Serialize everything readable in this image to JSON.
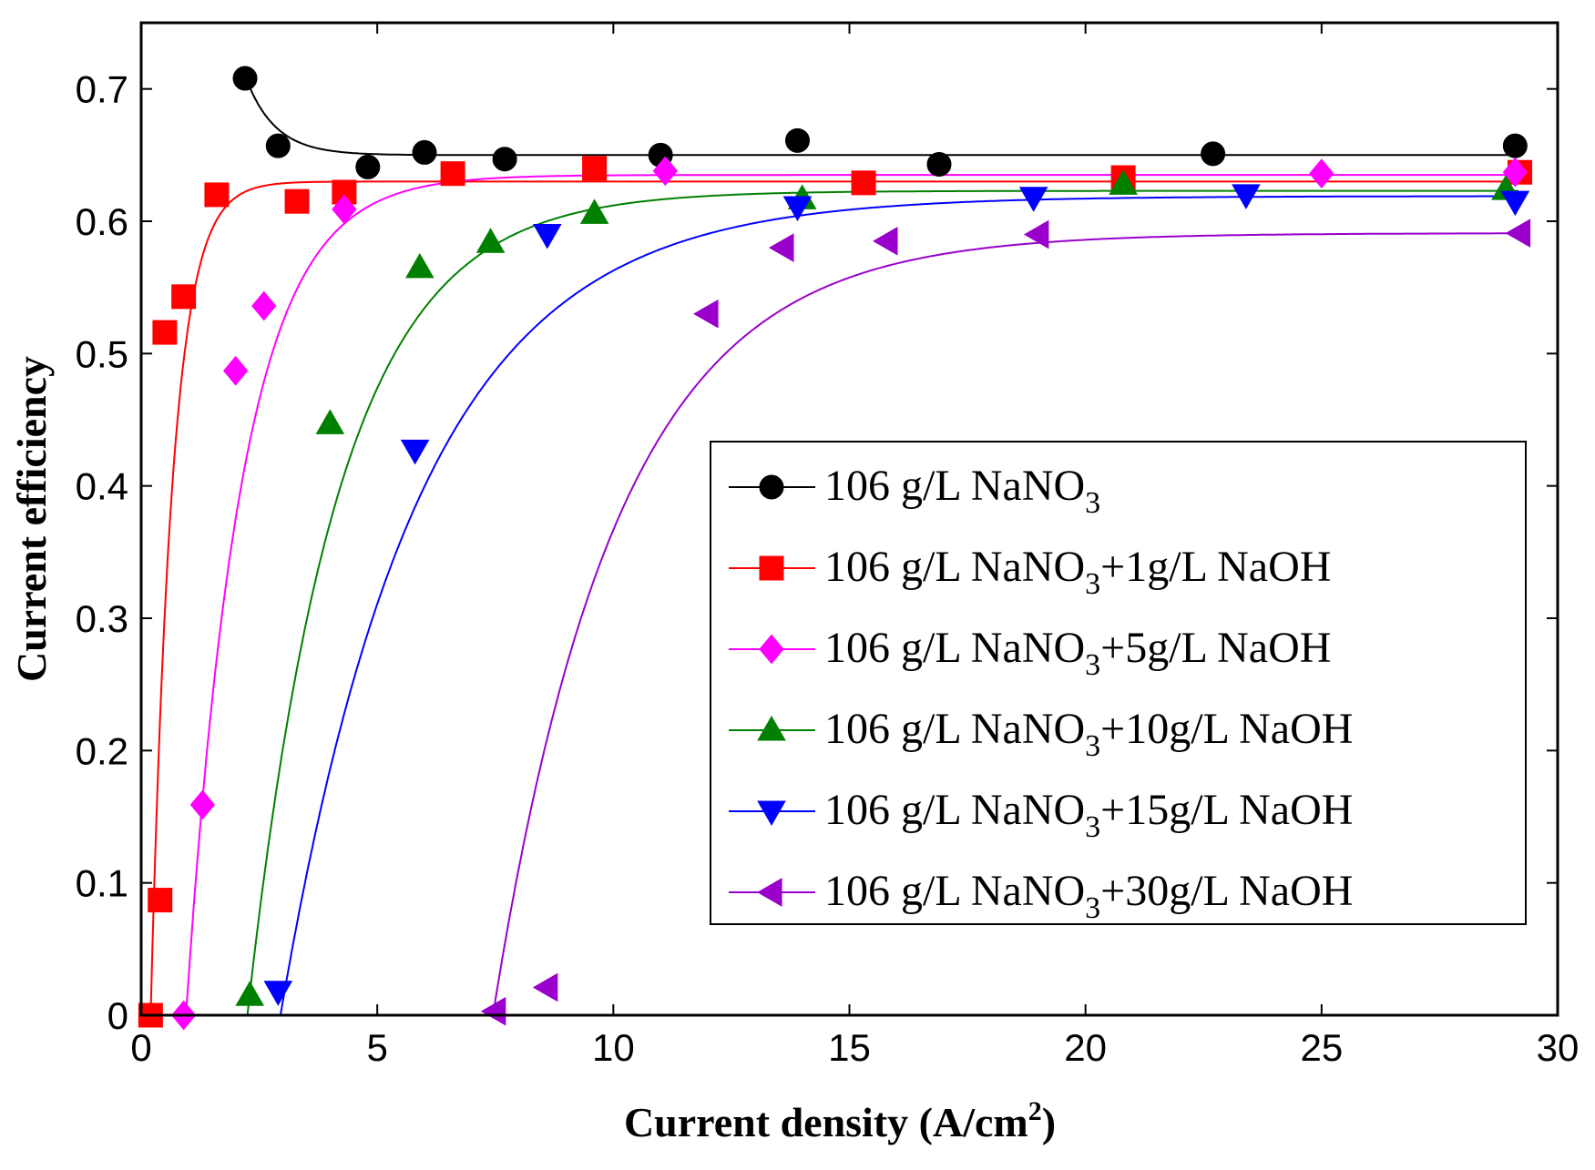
{
  "chart_data": {
    "type": "scatter",
    "title": "",
    "xlabel": "Current density (A/cm",
    "xlabel_sup": "2",
    "xlabel_end": ")",
    "ylabel": "Current efficiency",
    "xlim": [
      0,
      30
    ],
    "ylim": [
      0,
      0.75
    ],
    "xticks": [
      0,
      5,
      10,
      15,
      20,
      25,
      30
    ],
    "xtick_labels": [
      "0",
      "5",
      "10",
      "15",
      "20",
      "25",
      "30"
    ],
    "yticks": [
      0,
      0.1,
      0.2,
      0.3,
      0.4,
      0.5,
      0.6,
      0.7
    ],
    "ytick_labels": [
      "0",
      "0.1",
      "0.2",
      "0.3",
      "0.4",
      "0.5",
      "0.6",
      "0.7"
    ],
    "grid": false,
    "legend_position": "center-right",
    "series": [
      {
        "name": "106 g/L NaNO3",
        "label_main": "106 g/L NaNO",
        "label_sub": "3",
        "label_rest": "",
        "color": "#000000",
        "marker": "circle",
        "points": [
          [
            2.2,
            0.708
          ],
          [
            2.9,
            0.657
          ],
          [
            4.8,
            0.641
          ],
          [
            6.0,
            0.652
          ],
          [
            7.7,
            0.647
          ],
          [
            11.0,
            0.65
          ],
          [
            13.9,
            0.661
          ],
          [
            16.9,
            0.643
          ],
          [
            22.7,
            0.651
          ],
          [
            29.1,
            0.657
          ]
        ],
        "fit": {
          "plateau": 0.65,
          "amp": 0.06,
          "x0": 2.2,
          "k": 1.6,
          "start": 2.2
        }
      },
      {
        "name": "106 g/L NaNO3+1g/L NaOH",
        "label_main": "106 g/L NaNO",
        "label_sub": "3",
        "label_rest": "+1g/L NaOH",
        "color": "#ff0000",
        "marker": "square",
        "points": [
          [
            0.2,
            0.0
          ],
          [
            0.4,
            0.087
          ],
          [
            0.5,
            0.516
          ],
          [
            0.9,
            0.543
          ],
          [
            1.6,
            0.62
          ],
          [
            3.3,
            0.615
          ],
          [
            4.3,
            0.622
          ],
          [
            6.6,
            0.636
          ],
          [
            9.6,
            0.64
          ],
          [
            15.3,
            0.629
          ],
          [
            20.8,
            0.633
          ],
          [
            29.2,
            0.637
          ]
        ],
        "fit": {
          "plateau": 0.63,
          "x0": 0.2,
          "k": 2.2,
          "start": 0.2
        }
      },
      {
        "name": "106 g/L NaNO3+5g/L NaOH",
        "label_main": "106 g/L NaNO",
        "label_sub": "3",
        "label_rest": "+5g/L NaOH",
        "color": "#ff00ff",
        "marker": "diamond",
        "points": [
          [
            0.9,
            0.0
          ],
          [
            1.3,
            0.159
          ],
          [
            2.0,
            0.487
          ],
          [
            2.6,
            0.536
          ],
          [
            4.3,
            0.609
          ],
          [
            11.1,
            0.638
          ],
          [
            25.0,
            0.636
          ],
          [
            29.1,
            0.637
          ]
        ],
        "fit": {
          "plateau": 0.635,
          "x0": 0.95,
          "k": 0.85,
          "start": 0.95
        }
      },
      {
        "name": "106 g/L NaNO3+10g/L NaOH",
        "label_main": "106 g/L NaNO",
        "label_sub": "3",
        "label_rest": "+10g/L NaOH",
        "color": "#008000",
        "marker": "triangle-up",
        "points": [
          [
            2.3,
            0.015
          ],
          [
            4.0,
            0.447
          ],
          [
            5.9,
            0.565
          ],
          [
            7.4,
            0.584
          ],
          [
            9.6,
            0.606
          ],
          [
            14.0,
            0.617
          ],
          [
            20.8,
            0.628
          ],
          [
            28.9,
            0.624
          ]
        ],
        "fit": {
          "plateau": 0.623,
          "x0": 2.25,
          "k": 0.52,
          "start": 2.25
        }
      },
      {
        "name": "106 g/L NaNO3+15g/L NaOH",
        "label_main": "106 g/L NaNO",
        "label_sub": "3",
        "label_rest": "+15g/L NaOH",
        "color": "#0000ff",
        "marker": "triangle-down",
        "points": [
          [
            2.9,
            0.018
          ],
          [
            5.8,
            0.427
          ],
          [
            8.6,
            0.59
          ],
          [
            13.9,
            0.611
          ],
          [
            18.9,
            0.618
          ],
          [
            23.4,
            0.62
          ],
          [
            29.1,
            0.615
          ]
        ],
        "fit": {
          "plateau": 0.619,
          "x0": 2.95,
          "k": 0.34,
          "start": 2.95
        }
      },
      {
        "name": "106 g/L NaNO3+30g/L NaOH",
        "label_main": "106 g/L NaNO",
        "label_sub": "3",
        "label_rest": "+30g/L NaOH",
        "color": "#9900cc",
        "marker": "triangle-left",
        "points": [
          [
            7.5,
            0.003
          ],
          [
            8.6,
            0.021
          ],
          [
            12.0,
            0.53
          ],
          [
            13.6,
            0.58
          ],
          [
            15.8,
            0.585
          ],
          [
            19.0,
            0.59
          ],
          [
            29.2,
            0.591
          ]
        ],
        "fit": {
          "plateau": 0.591,
          "x0": 7.45,
          "k": 0.38,
          "start": 7.45
        }
      }
    ]
  }
}
